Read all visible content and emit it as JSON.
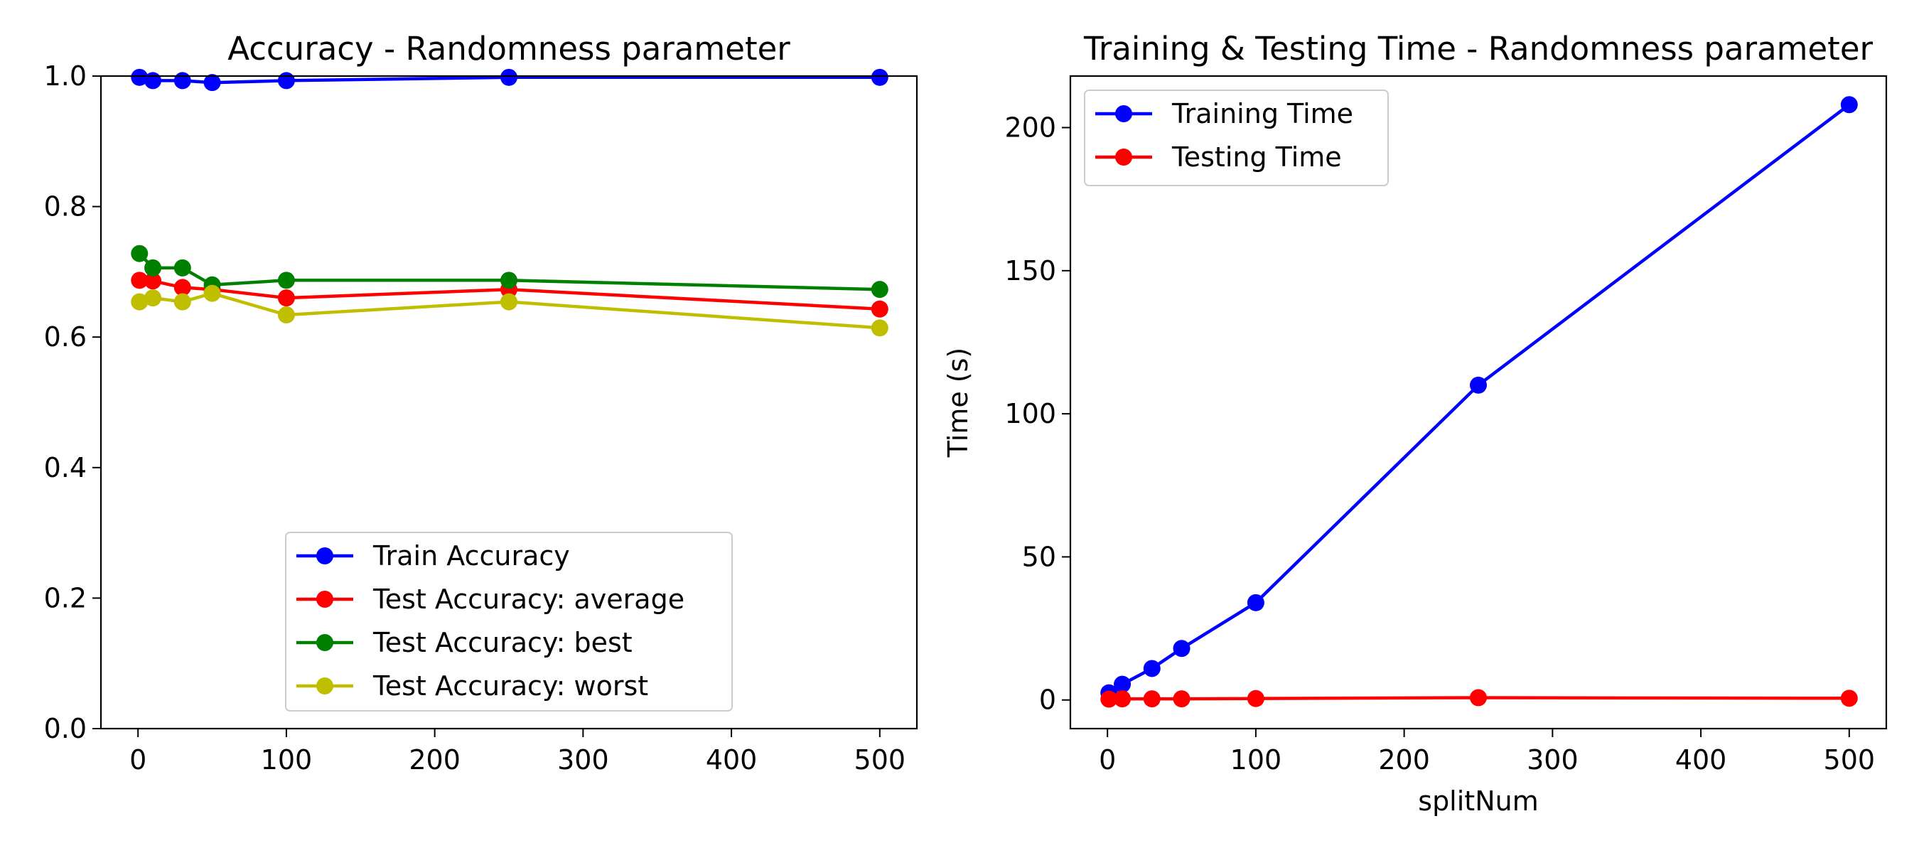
{
  "chart_data": [
    {
      "type": "line",
      "title": "Accuracy - Randomness parameter",
      "xlabel": "",
      "ylabel": "",
      "xlim": [
        -25,
        525
      ],
      "ylim": [
        0.0,
        1.0
      ],
      "xticks": [
        0,
        100,
        200,
        300,
        400,
        500
      ],
      "yticks": [
        0.0,
        0.2,
        0.4,
        0.6,
        0.8,
        1.0
      ],
      "xtick_labels": [
        "0",
        "100",
        "200",
        "300",
        "400",
        "500"
      ],
      "ytick_labels": [
        "0.0",
        "0.2",
        "0.4",
        "0.6",
        "0.8",
        "1.0"
      ],
      "grid": false,
      "legend_position": "lower center",
      "x": [
        1,
        10,
        30,
        50,
        100,
        250,
        500
      ],
      "series": [
        {
          "name": "Train Accuracy",
          "color": "#0000ff",
          "values": [
            0.998,
            0.993,
            0.993,
            0.99,
            0.993,
            0.998,
            0.998
          ]
        },
        {
          "name": "Test Accuracy: average",
          "color": "#ff0000",
          "values": [
            0.687,
            0.686,
            0.676,
            0.673,
            0.66,
            0.673,
            0.643
          ]
        },
        {
          "name": "Test Accuracy: best",
          "color": "#008000",
          "values": [
            0.728,
            0.706,
            0.706,
            0.68,
            0.687,
            0.687,
            0.673
          ]
        },
        {
          "name": "Test Accuracy: worst",
          "color": "#bfbf00",
          "values": [
            0.654,
            0.66,
            0.654,
            0.667,
            0.634,
            0.654,
            0.614
          ]
        }
      ]
    },
    {
      "type": "line",
      "title": "Training & Testing Time - Randomness parameter",
      "xlabel": "splitNum",
      "ylabel": "Time (s)",
      "xlim": [
        -25,
        525
      ],
      "ylim": [
        -10,
        218
      ],
      "xticks": [
        0,
        100,
        200,
        300,
        400,
        500
      ],
      "yticks": [
        0,
        50,
        100,
        150,
        200
      ],
      "xtick_labels": [
        "0",
        "100",
        "200",
        "300",
        "400",
        "500"
      ],
      "ytick_labels": [
        "0",
        "50",
        "100",
        "150",
        "200"
      ],
      "grid": false,
      "legend_position": "upper left",
      "x": [
        1,
        10,
        30,
        50,
        100,
        250,
        500
      ],
      "series": [
        {
          "name": "Training Time",
          "color": "#0000ff",
          "values": [
            2.5,
            5.5,
            11,
            18,
            34,
            110,
            208
          ]
        },
        {
          "name": "Testing Time",
          "color": "#ff0000",
          "values": [
            0.3,
            0.4,
            0.4,
            0.4,
            0.5,
            0.8,
            0.6
          ]
        }
      ]
    }
  ]
}
